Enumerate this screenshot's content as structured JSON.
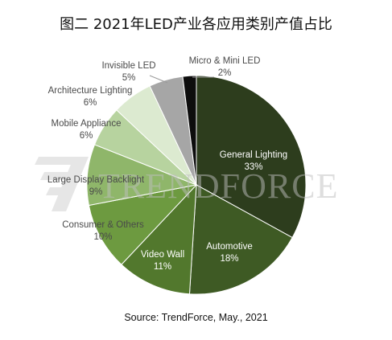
{
  "chart_data": {
    "type": "pie",
    "title": "图二  2021年LED产业各应用类别产值占比",
    "source": "Source: TrendForce, May., 2021",
    "watermark": "TRENDFORCE",
    "legend": "none",
    "slices": [
      {
        "label": "General Lighting",
        "value": 33,
        "value_text": "33%",
        "color": "#2d3d1d",
        "label_color": "#ffffff",
        "label_placement": "inside"
      },
      {
        "label": "Automotive",
        "value": 18,
        "value_text": "18%",
        "color": "#3e5a24",
        "label_color": "#ffffff",
        "label_placement": "inside"
      },
      {
        "label": "Video Wall",
        "value": 11,
        "value_text": "11%",
        "color": "#52782d",
        "label_color": "#ffffff",
        "label_placement": "inside"
      },
      {
        "label": "Consumer & Others",
        "value": 10,
        "value_text": "10%",
        "color": "#6d9a40",
        "label_color": "#4a4a4a",
        "label_placement": "outside"
      },
      {
        "label": "Large Display Backlight",
        "value": 9,
        "value_text": "9%",
        "color": "#8fb66a",
        "label_color": "#4a4a4a",
        "label_placement": "outside"
      },
      {
        "label": "Mobile Appliance",
        "value": 6,
        "value_text": "6%",
        "color": "#b7d39f",
        "label_color": "#4a4a4a",
        "label_placement": "outside"
      },
      {
        "label": "Architecture Lighting",
        "value": 6,
        "value_text": "6%",
        "color": "#dcead0",
        "label_color": "#4a4a4a",
        "label_placement": "outside"
      },
      {
        "label": "Invisible LED",
        "value": 5,
        "value_text": "5%",
        "color": "#a6a6a6",
        "label_color": "#4a4a4a",
        "label_placement": "outside"
      },
      {
        "label": "Micro & Mini LED",
        "value": 2,
        "value_text": "2%",
        "color": "#0d0d0d",
        "label_color": "#4a4a4a",
        "label_placement": "outside"
      }
    ]
  }
}
